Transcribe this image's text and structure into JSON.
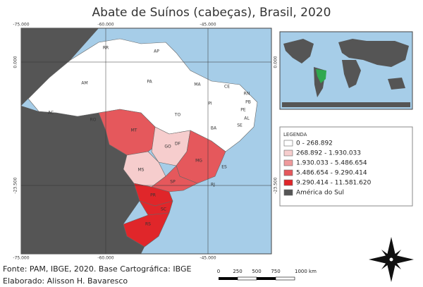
{
  "title": "Abate de Suínos (cabeças), Brasil, 2020",
  "coordinates": {
    "top": [
      "-75.000",
      "-60.000",
      "-45.000"
    ],
    "bottom": [
      "-75.000",
      "-60.000",
      "-45.000"
    ],
    "left": [
      "0.000",
      "-23.500"
    ],
    "right": [
      "0.000",
      "-23.500"
    ]
  },
  "states": [
    {
      "label": "RR"
    },
    {
      "label": "AP"
    },
    {
      "label": "AM"
    },
    {
      "label": "PA"
    },
    {
      "label": "MA"
    },
    {
      "label": "CE"
    },
    {
      "label": "RN"
    },
    {
      "label": "PB"
    },
    {
      "label": "PE"
    },
    {
      "label": "AL"
    },
    {
      "label": "SE"
    },
    {
      "label": "PI"
    },
    {
      "label": "AC"
    },
    {
      "label": "RO"
    },
    {
      "label": "TO"
    },
    {
      "label": "BA"
    },
    {
      "label": "MT"
    },
    {
      "label": "GO"
    },
    {
      "label": "DF"
    },
    {
      "label": "MG"
    },
    {
      "label": "ES"
    },
    {
      "label": "MS"
    },
    {
      "label": "SP"
    },
    {
      "label": "RJ"
    },
    {
      "label": "PR"
    },
    {
      "label": "SC"
    },
    {
      "label": "RS"
    }
  ],
  "legend": {
    "title": "LEGENDA",
    "items": [
      {
        "label": "0 - 268.892",
        "color": "#ffffff"
      },
      {
        "label": "268.892 - 1.930.033",
        "color": "#f6cdcd"
      },
      {
        "label": "1.930.033 - 5.486.654",
        "color": "#ef9a9c"
      },
      {
        "label": "5.486.654 - 9.290.414",
        "color": "#e5585c"
      },
      {
        "label": "9.290.414 - 11.581.620",
        "color": "#e0262a"
      },
      {
        "label": "América do Sul",
        "color": "#555555"
      }
    ]
  },
  "scale_bar": [
    "0",
    "250",
    "500",
    "750",
    "1000 km"
  ],
  "footer": {
    "source": "Fonte: PAM, IBGE, 2020. Base Cartográfica: IBGE",
    "author": "Elaborado: Alisson H. Bavaresco"
  }
}
